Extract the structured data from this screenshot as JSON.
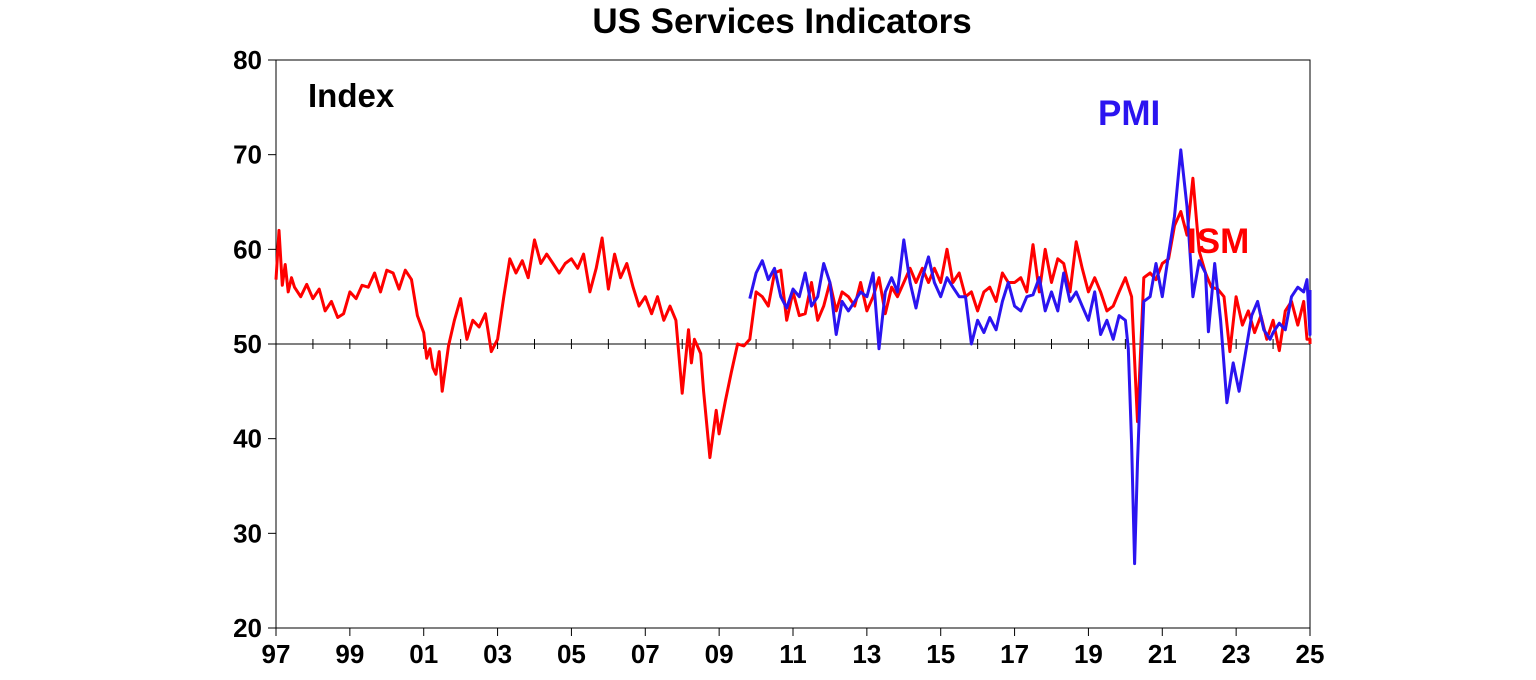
{
  "chart_data": {
    "type": "line",
    "title": "US Services Indicators",
    "ylabel": "Index",
    "ylim": [
      20,
      80
    ],
    "yticks": [
      20,
      30,
      40,
      50,
      60,
      70,
      80
    ],
    "xlim": [
      1997.0,
      2025.0
    ],
    "xtick_years": [
      1997,
      1999,
      2001,
      2003,
      2005,
      2007,
      2009,
      2011,
      2013,
      2015,
      2017,
      2019,
      2021,
      2023,
      2025
    ],
    "xtick_labels": [
      "97",
      "99",
      "01",
      "03",
      "05",
      "07",
      "09",
      "11",
      "13",
      "15",
      "17",
      "19",
      "21",
      "23",
      "25"
    ],
    "reference_line": 50,
    "grid": false,
    "series": [
      {
        "name": "ISM",
        "color": "#ff0000",
        "points": [
          [
            1997.0,
            56.8
          ],
          [
            1997.08,
            62.0
          ],
          [
            1997.17,
            56.2
          ],
          [
            1997.25,
            58.4
          ],
          [
            1997.33,
            55.5
          ],
          [
            1997.42,
            57.0
          ],
          [
            1997.5,
            56.0
          ],
          [
            1997.67,
            55.0
          ],
          [
            1997.83,
            56.3
          ],
          [
            1998.0,
            54.8
          ],
          [
            1998.17,
            55.8
          ],
          [
            1998.33,
            53.5
          ],
          [
            1998.5,
            54.5
          ],
          [
            1998.67,
            52.8
          ],
          [
            1998.83,
            53.2
          ],
          [
            1999.0,
            55.5
          ],
          [
            1999.17,
            54.8
          ],
          [
            1999.33,
            56.2
          ],
          [
            1999.5,
            56.0
          ],
          [
            1999.67,
            57.5
          ],
          [
            1999.83,
            55.5
          ],
          [
            2000.0,
            57.8
          ],
          [
            2000.17,
            57.5
          ],
          [
            2000.33,
            55.8
          ],
          [
            2000.5,
            57.8
          ],
          [
            2000.67,
            56.8
          ],
          [
            2000.83,
            53.0
          ],
          [
            2001.0,
            51.2
          ],
          [
            2001.08,
            48.5
          ],
          [
            2001.17,
            49.5
          ],
          [
            2001.25,
            47.5
          ],
          [
            2001.33,
            46.8
          ],
          [
            2001.42,
            49.2
          ],
          [
            2001.5,
            45.0
          ],
          [
            2001.67,
            49.8
          ],
          [
            2001.83,
            52.5
          ],
          [
            2002.0,
            54.8
          ],
          [
            2002.17,
            50.5
          ],
          [
            2002.33,
            52.5
          ],
          [
            2002.5,
            51.8
          ],
          [
            2002.67,
            53.2
          ],
          [
            2002.83,
            49.2
          ],
          [
            2003.0,
            50.5
          ],
          [
            2003.17,
            55.0
          ],
          [
            2003.33,
            59.0
          ],
          [
            2003.5,
            57.5
          ],
          [
            2003.67,
            58.8
          ],
          [
            2003.83,
            57.0
          ],
          [
            2004.0,
            61.0
          ],
          [
            2004.17,
            58.5
          ],
          [
            2004.33,
            59.5
          ],
          [
            2004.5,
            58.5
          ],
          [
            2004.67,
            57.5
          ],
          [
            2004.83,
            58.5
          ],
          [
            2005.0,
            59.0
          ],
          [
            2005.17,
            58.0
          ],
          [
            2005.33,
            59.5
          ],
          [
            2005.5,
            55.5
          ],
          [
            2005.67,
            58.0
          ],
          [
            2005.83,
            61.2
          ],
          [
            2006.0,
            55.8
          ],
          [
            2006.17,
            59.5
          ],
          [
            2006.33,
            57.0
          ],
          [
            2006.5,
            58.5
          ],
          [
            2006.67,
            56.0
          ],
          [
            2006.83,
            54.0
          ],
          [
            2007.0,
            55.0
          ],
          [
            2007.17,
            53.2
          ],
          [
            2007.33,
            55.0
          ],
          [
            2007.5,
            52.5
          ],
          [
            2007.67,
            54.0
          ],
          [
            2007.83,
            52.5
          ],
          [
            2008.0,
            44.8
          ],
          [
            2008.17,
            51.5
          ],
          [
            2008.25,
            48.0
          ],
          [
            2008.33,
            50.5
          ],
          [
            2008.5,
            49.0
          ],
          [
            2008.58,
            45.0
          ],
          [
            2008.75,
            38.0
          ],
          [
            2008.92,
            43.0
          ],
          [
            2009.0,
            40.5
          ],
          [
            2009.17,
            44.0
          ],
          [
            2009.33,
            47.0
          ],
          [
            2009.5,
            50.0
          ],
          [
            2009.67,
            49.8
          ],
          [
            2009.83,
            50.5
          ],
          [
            2010.0,
            55.5
          ],
          [
            2010.17,
            55.0
          ],
          [
            2010.33,
            54.0
          ],
          [
            2010.5,
            57.5
          ],
          [
            2010.67,
            57.8
          ],
          [
            2010.83,
            52.5
          ],
          [
            2011.0,
            55.5
          ],
          [
            2011.17,
            53.0
          ],
          [
            2011.33,
            53.2
          ],
          [
            2011.5,
            56.5
          ],
          [
            2011.67,
            52.5
          ],
          [
            2011.83,
            54.0
          ],
          [
            2012.0,
            56.5
          ],
          [
            2012.17,
            53.5
          ],
          [
            2012.33,
            55.5
          ],
          [
            2012.5,
            55.0
          ],
          [
            2012.67,
            54.0
          ],
          [
            2012.83,
            56.5
          ],
          [
            2013.0,
            53.5
          ],
          [
            2013.17,
            55.0
          ],
          [
            2013.33,
            57.0
          ],
          [
            2013.5,
            53.2
          ],
          [
            2013.67,
            56.0
          ],
          [
            2013.83,
            55.0
          ],
          [
            2014.0,
            56.5
          ],
          [
            2014.17,
            58.0
          ],
          [
            2014.33,
            56.5
          ],
          [
            2014.5,
            58.0
          ],
          [
            2014.67,
            56.5
          ],
          [
            2014.83,
            58.0
          ],
          [
            2015.0,
            56.5
          ],
          [
            2015.17,
            60.0
          ],
          [
            2015.33,
            56.5
          ],
          [
            2015.5,
            57.5
          ],
          [
            2015.67,
            55.0
          ],
          [
            2015.83,
            55.5
          ],
          [
            2016.0,
            53.5
          ],
          [
            2016.17,
            55.5
          ],
          [
            2016.33,
            56.0
          ],
          [
            2016.5,
            54.5
          ],
          [
            2016.67,
            57.5
          ],
          [
            2016.83,
            56.5
          ],
          [
            2017.0,
            56.5
          ],
          [
            2017.17,
            57.0
          ],
          [
            2017.33,
            55.5
          ],
          [
            2017.5,
            60.5
          ],
          [
            2017.67,
            55.5
          ],
          [
            2017.83,
            60.0
          ],
          [
            2018.0,
            56.5
          ],
          [
            2018.17,
            59.0
          ],
          [
            2018.33,
            58.5
          ],
          [
            2018.5,
            55.5
          ],
          [
            2018.67,
            60.8
          ],
          [
            2018.83,
            58.0
          ],
          [
            2019.0,
            55.5
          ],
          [
            2019.17,
            57.0
          ],
          [
            2019.33,
            55.5
          ],
          [
            2019.5,
            53.5
          ],
          [
            2019.67,
            54.0
          ],
          [
            2019.83,
            55.5
          ],
          [
            2020.0,
            57.0
          ],
          [
            2020.17,
            55.0
          ],
          [
            2020.33,
            41.8
          ],
          [
            2020.5,
            57.0
          ],
          [
            2020.67,
            57.5
          ],
          [
            2020.83,
            56.8
          ],
          [
            2021.0,
            58.5
          ],
          [
            2021.17,
            59.0
          ],
          [
            2021.33,
            62.5
          ],
          [
            2021.5,
            64.0
          ],
          [
            2021.67,
            61.5
          ],
          [
            2021.83,
            67.5
          ],
          [
            2022.0,
            59.8
          ],
          [
            2022.17,
            57.5
          ],
          [
            2022.33,
            56.0
          ],
          [
            2022.5,
            55.8
          ],
          [
            2022.67,
            55.0
          ],
          [
            2022.83,
            49.2
          ],
          [
            2023.0,
            55.0
          ],
          [
            2023.17,
            52.0
          ],
          [
            2023.33,
            53.5
          ],
          [
            2023.5,
            51.2
          ],
          [
            2023.67,
            53.0
          ],
          [
            2023.83,
            50.5
          ],
          [
            2024.0,
            52.5
          ],
          [
            2024.17,
            49.3
          ],
          [
            2024.33,
            53.5
          ],
          [
            2024.5,
            54.5
          ],
          [
            2024.67,
            52.0
          ],
          [
            2024.83,
            54.5
          ],
          [
            2024.92,
            50.5
          ],
          [
            2025.0,
            50.5
          ],
          [
            2025.08,
            50.0
          ]
        ]
      },
      {
        "name": "PMI",
        "color": "#2b14f0",
        "points": [
          [
            2009.83,
            54.8
          ],
          [
            2010.0,
            57.5
          ],
          [
            2010.17,
            58.8
          ],
          [
            2010.33,
            56.8
          ],
          [
            2010.5,
            58.0
          ],
          [
            2010.67,
            55.0
          ],
          [
            2010.83,
            53.8
          ],
          [
            2011.0,
            55.8
          ],
          [
            2011.17,
            55.0
          ],
          [
            2011.33,
            57.5
          ],
          [
            2011.5,
            54.0
          ],
          [
            2011.67,
            55.0
          ],
          [
            2011.83,
            58.5
          ],
          [
            2012.0,
            56.5
          ],
          [
            2012.17,
            51.0
          ],
          [
            2012.33,
            54.5
          ],
          [
            2012.5,
            53.5
          ],
          [
            2012.67,
            54.5
          ],
          [
            2012.83,
            55.5
          ],
          [
            2013.0,
            55.0
          ],
          [
            2013.17,
            57.5
          ],
          [
            2013.33,
            49.5
          ],
          [
            2013.5,
            55.5
          ],
          [
            2013.67,
            57.0
          ],
          [
            2013.83,
            55.5
          ],
          [
            2014.0,
            61.0
          ],
          [
            2014.17,
            56.5
          ],
          [
            2014.33,
            53.8
          ],
          [
            2014.5,
            57.0
          ],
          [
            2014.67,
            59.2
          ],
          [
            2014.83,
            56.5
          ],
          [
            2015.0,
            55.0
          ],
          [
            2015.17,
            57.0
          ],
          [
            2015.33,
            56.0
          ],
          [
            2015.5,
            55.0
          ],
          [
            2015.67,
            55.0
          ],
          [
            2015.83,
            50.0
          ],
          [
            2016.0,
            52.5
          ],
          [
            2016.17,
            51.2
          ],
          [
            2016.33,
            52.8
          ],
          [
            2016.5,
            51.5
          ],
          [
            2016.67,
            54.5
          ],
          [
            2016.83,
            56.5
          ],
          [
            2017.0,
            54.0
          ],
          [
            2017.17,
            53.5
          ],
          [
            2017.33,
            55.0
          ],
          [
            2017.5,
            55.2
          ],
          [
            2017.67,
            57.0
          ],
          [
            2017.83,
            53.5
          ],
          [
            2018.0,
            55.5
          ],
          [
            2018.17,
            53.5
          ],
          [
            2018.33,
            57.5
          ],
          [
            2018.5,
            54.5
          ],
          [
            2018.67,
            55.5
          ],
          [
            2018.83,
            54.0
          ],
          [
            2019.0,
            52.5
          ],
          [
            2019.17,
            55.5
          ],
          [
            2019.33,
            51.0
          ],
          [
            2019.5,
            52.5
          ],
          [
            2019.67,
            50.5
          ],
          [
            2019.83,
            53.0
          ],
          [
            2020.0,
            52.5
          ],
          [
            2020.08,
            49.5
          ],
          [
            2020.17,
            39.5
          ],
          [
            2020.25,
            26.8
          ],
          [
            2020.33,
            37.5
          ],
          [
            2020.42,
            47.0
          ],
          [
            2020.5,
            54.5
          ],
          [
            2020.67,
            55.0
          ],
          [
            2020.83,
            58.5
          ],
          [
            2021.0,
            55.0
          ],
          [
            2021.17,
            59.5
          ],
          [
            2021.33,
            63.5
          ],
          [
            2021.5,
            70.5
          ],
          [
            2021.67,
            64.5
          ],
          [
            2021.83,
            55.0
          ],
          [
            2022.0,
            58.8
          ],
          [
            2022.17,
            57.5
          ],
          [
            2022.25,
            51.3
          ],
          [
            2022.42,
            58.5
          ],
          [
            2022.58,
            52.5
          ],
          [
            2022.75,
            43.8
          ],
          [
            2022.92,
            48.0
          ],
          [
            2023.0,
            46.5
          ],
          [
            2023.08,
            45.0
          ],
          [
            2023.25,
            49.0
          ],
          [
            2023.42,
            53.0
          ],
          [
            2023.58,
            54.5
          ],
          [
            2023.75,
            51.5
          ],
          [
            2023.92,
            50.5
          ],
          [
            2024.0,
            51.2
          ],
          [
            2024.17,
            52.2
          ],
          [
            2024.33,
            51.5
          ],
          [
            2024.5,
            55.0
          ],
          [
            2024.67,
            56.0
          ],
          [
            2024.83,
            55.5
          ],
          [
            2024.92,
            56.8
          ],
          [
            2025.0,
            51.0
          ],
          [
            2025.08,
            54.3
          ],
          [
            2025.17,
            51.0
          ],
          [
            2025.25,
            53.5
          ],
          [
            2025.33,
            53.0
          ],
          [
            2025.42,
            55.7
          ]
        ]
      }
    ]
  }
}
